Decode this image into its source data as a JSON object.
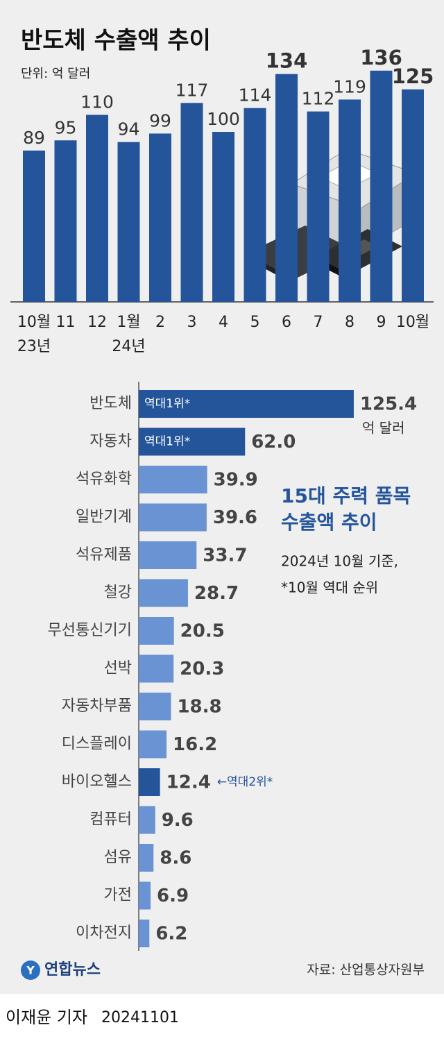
{
  "chart_data": [
    {
      "type": "bar",
      "title": "반도체 수출액 추이",
      "subtitle": "단위: 억 달러",
      "categories": [
        "10월",
        "11",
        "12",
        "1월",
        "2",
        "3",
        "4",
        "5",
        "6",
        "7",
        "8",
        "9",
        "10월"
      ],
      "year_labels": [
        "23년",
        null,
        null,
        "24년",
        null,
        null,
        null,
        null,
        null,
        null,
        null,
        null,
        null
      ],
      "values": [
        89,
        95,
        110,
        94,
        99,
        117,
        100,
        114,
        134,
        112,
        119,
        136,
        125
      ],
      "emphasized": [
        false,
        false,
        false,
        false,
        false,
        false,
        false,
        false,
        true,
        false,
        false,
        true,
        true
      ],
      "color": "#24549a",
      "ylim": [
        0,
        140
      ]
    },
    {
      "type": "hbar",
      "title": [
        "15대 주력 품목",
        "수출액 추이"
      ],
      "subtitle": [
        "2024년 10월 기준,",
        "*10월 역대 순위"
      ],
      "categories": [
        "반도체",
        "자동차",
        "석유화학",
        "일반기계",
        "석유제품",
        "철강",
        "무선통신기기",
        "선박",
        "자동차부품",
        "디스플레이",
        "바이오헬스",
        "컴퓨터",
        "섬유",
        "가전",
        "이차전지"
      ],
      "values": [
        125.4,
        62.0,
        39.9,
        39.6,
        33.7,
        28.7,
        20.5,
        20.3,
        18.8,
        16.2,
        12.4,
        9.6,
        8.6,
        6.9,
        6.2
      ],
      "value_labels": [
        "125.4",
        "62.0",
        "39.9",
        "39.6",
        "33.7",
        "28.7",
        "20.5",
        "20.3",
        "18.8",
        "16.2",
        "12.4",
        "9.6",
        "8.6",
        "6.9",
        "6.2"
      ],
      "unit": "억 달러",
      "notes": [
        "역대1위*",
        "역대1위*",
        null,
        null,
        null,
        null,
        null,
        null,
        null,
        null,
        "←역대2위*",
        null,
        null,
        null,
        null
      ],
      "colors": [
        "#24549a",
        "#24549a",
        "#6a93d4",
        "#6a93d4",
        "#6a93d4",
        "#6a93d4",
        "#6a93d4",
        "#6a93d4",
        "#6a93d4",
        "#6a93d4",
        "#24549a",
        "#6a93d4",
        "#6a93d4",
        "#6a93d4",
        "#6a93d4"
      ],
      "xlim": [
        0,
        140
      ]
    }
  ],
  "logo": "연합뉴스",
  "source": "자료: 산업통상자원부",
  "byline": "이재윤 기자",
  "date": "20241101"
}
